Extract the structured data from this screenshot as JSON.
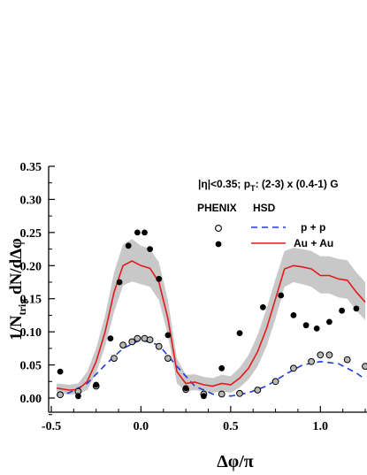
{
  "chart_data": {
    "type": "scatter",
    "annotation": {
      "pre": "|η|<0.35;  p",
      "sub": "T",
      "post": ": (2-3) x (0.4-1) G"
    },
    "xlabel": "Δφ/π",
    "ylabel": {
      "pre": "1/N",
      "sub": "trig",
      "post": " dN/dΔφ"
    },
    "xlim": [
      -0.5,
      1.25
    ],
    "ylim": [
      0.0,
      0.35
    ],
    "xticks": [
      -0.5,
      0.0,
      0.5,
      1.0
    ],
    "xtick_labels": [
      "-0.5",
      "0.0",
      "0.5",
      "1.0"
    ],
    "yticks": [
      0.0,
      0.05,
      0.1,
      0.15,
      0.2,
      0.25,
      0.3,
      0.35
    ],
    "ytick_labels": [
      "0.00",
      "0.05",
      "0.10",
      "0.15",
      "0.20",
      "0.25",
      "0.30",
      "0.35"
    ],
    "legend": {
      "header_left": "PHENIX",
      "header_right": "HSD",
      "entries": [
        {
          "marker": "open",
          "line": "dashed",
          "label": "p + p"
        },
        {
          "marker": "filled",
          "line": "solid",
          "label": "Au + Au"
        }
      ]
    },
    "colors": {
      "auau_line": "#e41a1c",
      "pp_line": "#1f3bd9",
      "band": "#c8c8c8",
      "pp_marker_fill": "#b8b8b8",
      "markers": "#000000"
    },
    "series": [
      {
        "name": "p + p",
        "role": "phenix_points",
        "x": [
          -0.45,
          -0.35,
          -0.25,
          -0.15,
          -0.1,
          -0.05,
          -0.02,
          0.02,
          0.05,
          0.1,
          0.15,
          0.25,
          0.35,
          0.45,
          0.55,
          0.65,
          0.75,
          0.85,
          0.95,
          1.0,
          1.05,
          1.15,
          1.25
        ],
        "y": [
          0.005,
          0.01,
          0.018,
          0.06,
          0.08,
          0.085,
          0.09,
          0.09,
          0.088,
          0.078,
          0.06,
          0.013,
          0.006,
          0.006,
          0.007,
          0.012,
          0.025,
          0.045,
          0.055,
          0.065,
          0.065,
          0.058,
          0.048
        ]
      },
      {
        "name": "Au + Au",
        "role": "phenix_points",
        "x": [
          -0.45,
          -0.35,
          -0.25,
          -0.17,
          -0.12,
          -0.07,
          -0.02,
          0.02,
          0.05,
          0.1,
          0.15,
          0.25,
          0.35,
          0.45,
          0.55,
          0.68,
          0.78,
          0.85,
          0.92,
          0.98,
          1.05,
          1.12,
          1.2
        ],
        "y": [
          0.04,
          0.003,
          0.02,
          0.09,
          0.175,
          0.23,
          0.25,
          0.25,
          0.225,
          0.18,
          0.095,
          0.015,
          0.003,
          0.045,
          0.098,
          0.137,
          0.155,
          0.125,
          0.11,
          0.105,
          0.115,
          0.132,
          0.135
        ]
      },
      {
        "name": "p + p",
        "role": "hsd_curve",
        "x": [
          -0.47,
          -0.4,
          -0.3,
          -0.2,
          -0.1,
          0.0,
          0.1,
          0.2,
          0.3,
          0.4,
          0.5,
          0.6,
          0.7,
          0.8,
          0.9,
          1.0,
          1.1,
          1.2,
          1.25
        ],
        "y": [
          0.004,
          0.008,
          0.022,
          0.05,
          0.075,
          0.088,
          0.08,
          0.048,
          0.018,
          0.006,
          0.003,
          0.008,
          0.018,
          0.035,
          0.05,
          0.055,
          0.052,
          0.038,
          0.028
        ]
      },
      {
        "name": "Au + Au",
        "role": "hsd_curve",
        "x": [
          -0.47,
          -0.4,
          -0.35,
          -0.3,
          -0.25,
          -0.2,
          -0.15,
          -0.1,
          -0.05,
          0.0,
          0.05,
          0.1,
          0.15,
          0.2,
          0.25,
          0.3,
          0.35,
          0.4,
          0.45,
          0.5,
          0.55,
          0.6,
          0.65,
          0.7,
          0.75,
          0.8,
          0.85,
          0.9,
          0.95,
          1.0,
          1.05,
          1.1,
          1.15,
          1.2,
          1.25
        ],
        "y": [
          0.015,
          0.012,
          0.013,
          0.025,
          0.055,
          0.1,
          0.16,
          0.2,
          0.207,
          0.2,
          0.196,
          0.175,
          0.12,
          0.04,
          0.022,
          0.024,
          0.02,
          0.018,
          0.022,
          0.02,
          0.03,
          0.045,
          0.07,
          0.105,
          0.15,
          0.195,
          0.2,
          0.198,
          0.195,
          0.185,
          0.185,
          0.18,
          0.178,
          0.16,
          0.145
        ]
      },
      {
        "name": "",
        "role": "hsd_band_upper",
        "x": [
          -0.47,
          -0.4,
          -0.35,
          -0.3,
          -0.25,
          -0.2,
          -0.15,
          -0.1,
          -0.05,
          0.0,
          0.05,
          0.1,
          0.15,
          0.2,
          0.25,
          0.3,
          0.35,
          0.4,
          0.45,
          0.5,
          0.55,
          0.6,
          0.65,
          0.7,
          0.75,
          0.8,
          0.85,
          0.9,
          0.95,
          1.0,
          1.05,
          1.1,
          1.15,
          1.2,
          1.25
        ],
        "y": [
          0.022,
          0.02,
          0.022,
          0.04,
          0.075,
          0.125,
          0.19,
          0.232,
          0.24,
          0.23,
          0.225,
          0.205,
          0.148,
          0.06,
          0.035,
          0.036,
          0.032,
          0.03,
          0.035,
          0.033,
          0.046,
          0.065,
          0.095,
          0.135,
          0.18,
          0.222,
          0.227,
          0.225,
          0.222,
          0.214,
          0.214,
          0.21,
          0.208,
          0.19,
          0.175
        ]
      },
      {
        "name": "",
        "role": "hsd_band_lower",
        "x": [
          -0.47,
          -0.4,
          -0.35,
          -0.3,
          -0.25,
          -0.2,
          -0.15,
          -0.1,
          -0.05,
          0.0,
          0.05,
          0.1,
          0.15,
          0.2,
          0.25,
          0.3,
          0.35,
          0.4,
          0.45,
          0.5,
          0.55,
          0.6,
          0.65,
          0.7,
          0.75,
          0.8,
          0.85,
          0.9,
          0.95,
          1.0,
          1.05,
          1.1,
          1.15,
          1.2,
          1.25
        ],
        "y": [
          0.008,
          0.005,
          0.006,
          0.012,
          0.038,
          0.078,
          0.13,
          0.17,
          0.176,
          0.172,
          0.168,
          0.148,
          0.095,
          0.022,
          0.01,
          0.012,
          0.01,
          0.008,
          0.01,
          0.008,
          0.016,
          0.028,
          0.048,
          0.078,
          0.12,
          0.168,
          0.175,
          0.172,
          0.168,
          0.158,
          0.158,
          0.152,
          0.15,
          0.132,
          0.118
        ]
      }
    ]
  }
}
